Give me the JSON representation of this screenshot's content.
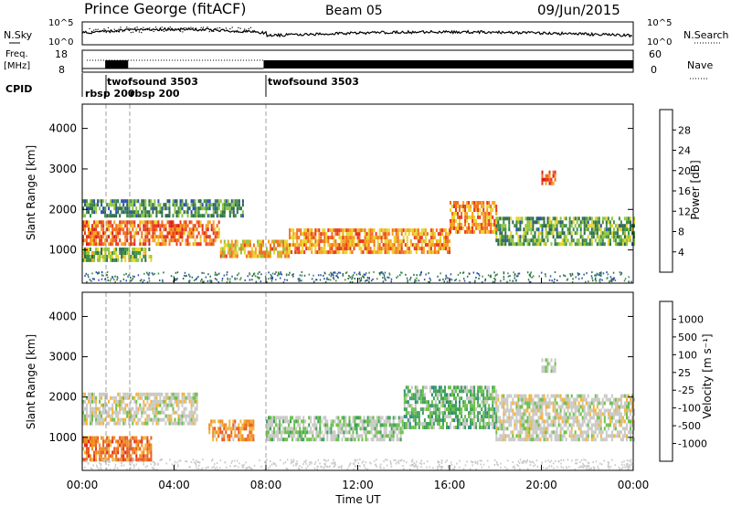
{
  "header": {
    "station": "Prince George (fitACF)",
    "beam": "Beam 05",
    "date": "09/Jun/2015"
  },
  "panels": {
    "nsky_label": "N.Sky",
    "nsearch_label": "N.Search",
    "freq_label_1": "Freq.",
    "freq_label_2": "[MHz]",
    "nave_label": "Nave",
    "cpid_label": "CPID",
    "nsky_ticks": [
      "10^5",
      "10^0"
    ],
    "nsearch_ticks": [
      "10^5",
      "10^0"
    ],
    "freq_ticks": [
      "18",
      "8"
    ],
    "nave_ticks": [
      "60",
      "0"
    ],
    "cpid_segments": [
      {
        "label": "rbsp 200",
        "start_hour": 1.0
      },
      {
        "label": "twofsound 3503",
        "start_hour": 1.0
      },
      {
        "label": "rbsp 200",
        "start_hour": 2.0
      },
      {
        "label": "twofsound 3503",
        "start_hour": 7.9
      }
    ]
  },
  "axes": {
    "ylabel": "Slant Range [km]",
    "xlabel": "Time UT",
    "y_ticks": [
      "1000",
      "2000",
      "3000",
      "4000"
    ],
    "x_ticks": [
      "00:00",
      "04:00",
      "08:00",
      "12:00",
      "16:00",
      "20:00",
      "00:00"
    ]
  },
  "colorbars": {
    "power": {
      "title": "Power [dB]",
      "ticks": [
        "4",
        "8",
        "12",
        "16",
        "20",
        "24",
        "28"
      ],
      "colors": [
        "#1b22e8",
        "#2a4fb0",
        "#2e6b4a",
        "#3f8f45",
        "#8ec63f",
        "#e8d42c",
        "#f6a21e",
        "#f26f1f",
        "#e8381e",
        "#d81e1e"
      ]
    },
    "velocity": {
      "title": "Velocity [m s⁻¹]",
      "ticks": [
        "1000",
        "500",
        "100",
        "25",
        "-25",
        "-100",
        "-500",
        "-1000"
      ],
      "colors": [
        "#1d3ca8",
        "#2f67b4",
        "#2e8a7a",
        "#3fa15a",
        "#6cc04a",
        "#c9c9c6",
        "#c9c9c6",
        "#f4b43a",
        "#f08b22",
        "#ea5a1e",
        "#e22c1e",
        "#d81616"
      ]
    }
  },
  "chart_data": [
    {
      "type": "heatmap",
      "title": "Power",
      "xlabel": "Time UT",
      "ylabel": "Slant Range [km]",
      "xlim": [
        0,
        24
      ],
      "ylim": [
        180,
        4600
      ],
      "colorbar_label": "Power [dB]",
      "colorbar_range": [
        0,
        32
      ],
      "regions": [
        {
          "t0": 0.0,
          "t1": 6.0,
          "r0": 1100,
          "r1": 1700,
          "value": 24
        },
        {
          "t0": 0.0,
          "t1": 3.0,
          "r0": 700,
          "r1": 1000,
          "value": 14
        },
        {
          "t0": 0.0,
          "t1": 7.0,
          "r0": 1800,
          "r1": 2200,
          "value": 10
        },
        {
          "t0": 6.0,
          "t1": 9.0,
          "r0": 800,
          "r1": 1200,
          "value": 20
        },
        {
          "t0": 9.0,
          "t1": 16.0,
          "r0": 900,
          "r1": 1500,
          "value": 22
        },
        {
          "t0": 16.0,
          "t1": 18.0,
          "r0": 1400,
          "r1": 2200,
          "value": 22
        },
        {
          "t0": 18.0,
          "t1": 24.0,
          "r0": 1100,
          "r1": 1800,
          "value": 12
        },
        {
          "t0": 20.0,
          "t1": 20.6,
          "r0": 2600,
          "r1": 2950,
          "value": 26
        }
      ]
    },
    {
      "type": "heatmap",
      "title": "Velocity",
      "xlabel": "Time UT",
      "ylabel": "Slant Range [km]",
      "xlim": [
        0,
        24
      ],
      "ylim": [
        180,
        4600
      ],
      "colorbar_label": "Velocity [m s⁻¹]",
      "colorbar_range": [
        -1000,
        1000
      ],
      "regions": [
        {
          "t0": 0.0,
          "t1": 5.0,
          "r0": 1300,
          "r1": 2100,
          "value": 0
        },
        {
          "t0": 0.0,
          "t1": 3.0,
          "r0": 400,
          "r1": 1000,
          "value": -500
        },
        {
          "t0": 5.5,
          "t1": 7.5,
          "r0": 900,
          "r1": 1400,
          "value": -400
        },
        {
          "t0": 8.0,
          "t1": 14.0,
          "r0": 900,
          "r1": 1500,
          "value": 150
        },
        {
          "t0": 14.0,
          "t1": 18.0,
          "r0": 1200,
          "r1": 2200,
          "value": 300
        },
        {
          "t0": 18.0,
          "t1": 24.0,
          "r0": 900,
          "r1": 2000,
          "value": 0
        },
        {
          "t0": 20.0,
          "t1": 20.6,
          "r0": 2600,
          "r1": 2950,
          "value": 80
        }
      ]
    }
  ]
}
